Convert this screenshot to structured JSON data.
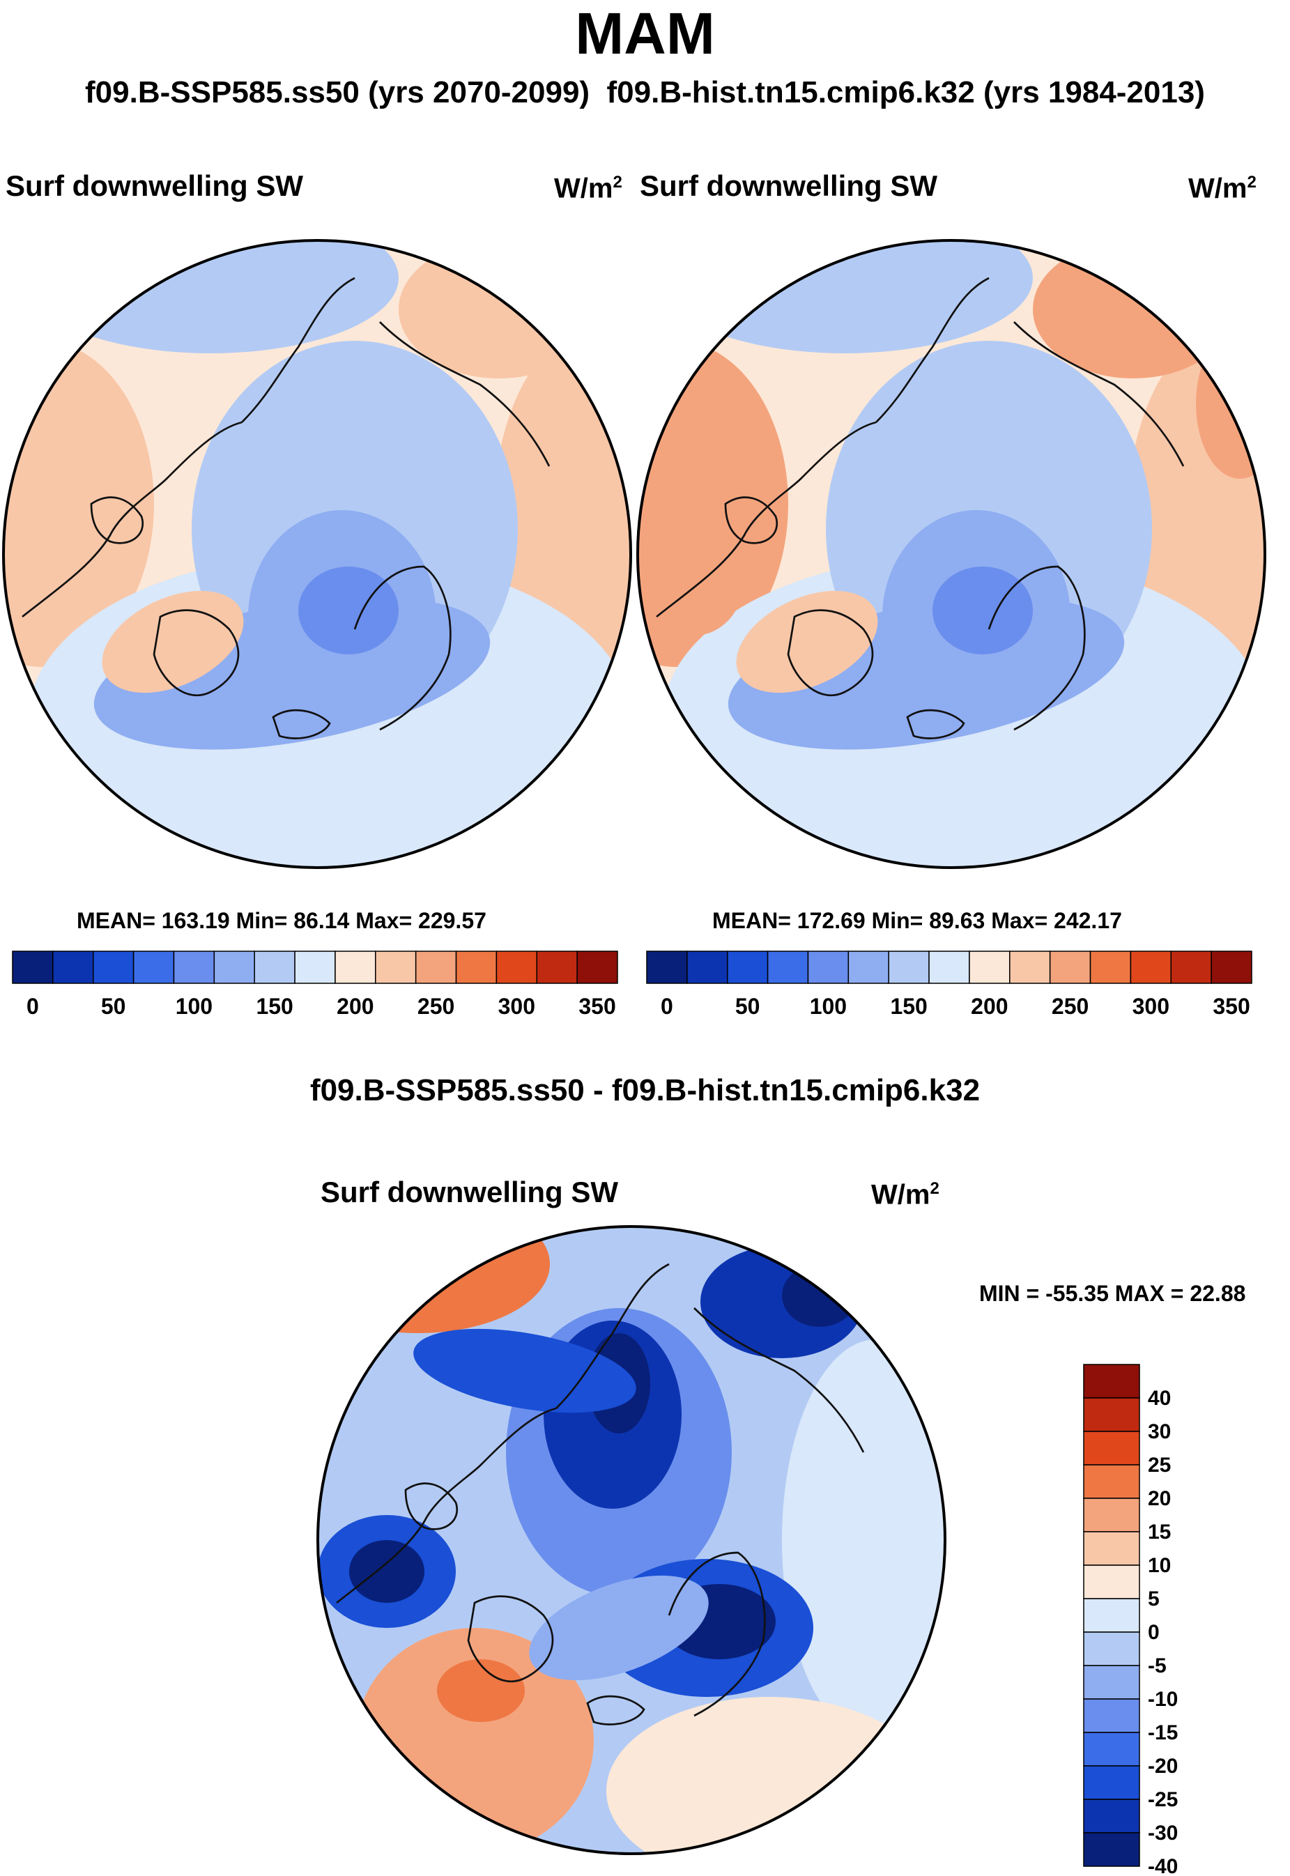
{
  "title": "MAM",
  "subtitle": {
    "case_label": "f09.B-SSP585.ss50 (yrs 2070-2099)",
    "control_label": "f09.B-hist.tn15.cmip6.k32 (yrs 1984-2013)"
  },
  "chart_data": [
    {
      "type": "contour-map",
      "title": "Surf downwelling SW",
      "units": "W/m",
      "units_exp": "2",
      "projection": "north-polar-stereographic",
      "stats_text": "MEAN= 163.19  Min=  86.14  Max= 229.57",
      "mean": 163.19,
      "min": 86.14,
      "max": 229.57,
      "colorbar": {
        "levels": [
          0,
          25,
          50,
          75,
          100,
          125,
          150,
          175,
          200,
          225,
          250,
          275,
          300,
          325,
          350
        ],
        "tick_labels": [
          "0",
          "50",
          "100",
          "150",
          "200",
          "250",
          "300",
          "350"
        ]
      }
    },
    {
      "type": "contour-map",
      "title": "Surf downwelling SW",
      "units": "W/m",
      "units_exp": "2",
      "projection": "north-polar-stereographic",
      "stats_text": "MEAN= 172.69  Min=  89.63  Max= 242.17",
      "mean": 172.69,
      "min": 89.63,
      "max": 242.17,
      "colorbar": {
        "levels": [
          0,
          25,
          50,
          75,
          100,
          125,
          150,
          175,
          200,
          225,
          250,
          275,
          300,
          325,
          350
        ],
        "tick_labels": [
          "0",
          "50",
          "100",
          "150",
          "200",
          "250",
          "300",
          "350"
        ]
      }
    },
    {
      "type": "contour-map",
      "title": "Surf downwelling SW",
      "diff_title": "f09.B-SSP585.ss50 - f09.B-hist.tn15.cmip6.k32",
      "units": "W/m",
      "units_exp": "2",
      "projection": "north-polar-stereographic",
      "minmax_text": "MIN = -55.35 MAX =  22.88",
      "min": -55.35,
      "max": 22.88,
      "colorbar": {
        "levels": [
          -40,
          -30,
          -25,
          -20,
          -15,
          -10,
          -5,
          0,
          5,
          10,
          15,
          20,
          25,
          30,
          40
        ],
        "tick_labels": [
          "40",
          "30",
          "25",
          "20",
          "15",
          "10",
          "5",
          "0",
          "-5",
          "-10",
          "-15",
          "-20",
          "-25",
          "-30",
          "-40"
        ]
      }
    }
  ],
  "colors": {
    "palette": [
      "#08207a",
      "#0d34b0",
      "#1a4fd6",
      "#3c6de8",
      "#6a8eed",
      "#8fadf1",
      "#b3cbf4",
      "#d9e8fa",
      "#fce8d8",
      "#f8c7a8",
      "#f4a47d",
      "#ee7743",
      "#e0481c",
      "#c02a10",
      "#8e1008"
    ],
    "coast": "#111111"
  }
}
